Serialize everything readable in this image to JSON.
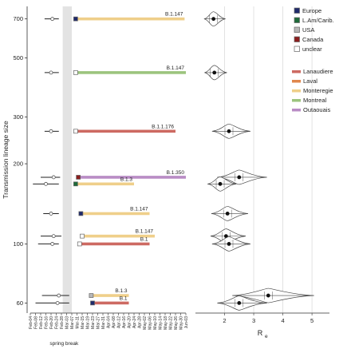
{
  "chart_data": [
    {
      "type": "timeline",
      "ylabel": "Transmission lineage size",
      "x_ticks": [
        "Feb-04",
        "Feb-08",
        "Feb-12",
        "Feb-16",
        "Feb-20",
        "Feb-24",
        "Feb-28",
        "Mar-03",
        "Mar-07",
        "Mar-11",
        "Mar-15",
        "Mar-19",
        "Mar-23",
        "Mar-27",
        "Mar-31",
        "Apr-04",
        "Apr-08",
        "Apr-12",
        "Apr-16",
        "Apr-20",
        "Apr-24",
        "Apr-28",
        "May-02",
        "May-06",
        "May-10",
        "May-14",
        "May-18",
        "May-22",
        "May-26",
        "May-30",
        "Jun-03"
      ],
      "x_range": [
        "Feb-04",
        "Jun-03"
      ],
      "y_ticks": [
        60,
        100,
        200,
        300,
        500,
        700
      ],
      "y_scale": "log",
      "y_range": [
        55,
        780
      ],
      "shaded_band": {
        "label": "spring break",
        "from": "Feb-29",
        "to": "Mar-07"
      },
      "lineages": [
        {
          "size": 700,
          "tmrca": "Feb-21",
          "ci": [
            "Feb-15",
            "Feb-26"
          ],
          "first": "Mar-10",
          "last": "Jun-02",
          "origin": "Europe",
          "region": "Monteregie",
          "label": "B.1.147"
        },
        {
          "size": 440,
          "tmrca": "Feb-20",
          "ci": [
            "Feb-15",
            "Feb-26"
          ],
          "first": "Mar-10",
          "last": "Jun-03",
          "origin": "unclear",
          "region": "Montreal",
          "label": "B.1.147"
        },
        {
          "size": 265,
          "tmrca": "Feb-20",
          "ci": [
            "Feb-15",
            "Feb-26"
          ],
          "first": "Mar-10",
          "last": "May-26",
          "origin": "unclear",
          "region": "Lanaudiere",
          "label": "B.1.1.176"
        },
        {
          "size": 178,
          "tmrca": "Feb-22",
          "ci": [
            "Feb-12",
            "Feb-27"
          ],
          "first": "Mar-12",
          "last": "Jun-03",
          "origin": "Canada",
          "region": "Outaouais",
          "label": "B.1.350"
        },
        {
          "size": 168,
          "tmrca": "Feb-16",
          "ci": [
            "Feb-06",
            "Feb-26"
          ],
          "first": "Mar-10",
          "last": "Apr-24",
          "origin": "L.Am/Carib.",
          "region": "Monteregie",
          "label": "B.1.3"
        },
        {
          "size": 130,
          "tmrca": "Feb-20",
          "ci": [
            "Feb-14",
            "Feb-26"
          ],
          "first": "Mar-14",
          "last": "May-06",
          "origin": "Europe",
          "region": "Monteregie",
          "label": "B.1.147"
        },
        {
          "size": 107,
          "tmrca": "Feb-22",
          "ci": [
            "Feb-12",
            "Feb-28"
          ],
          "first": "Mar-15",
          "last": "May-10",
          "origin": "unclear",
          "region": "Monteregie",
          "label": "B.1.147"
        },
        {
          "size": 100,
          "tmrca": "Feb-21",
          "ci": [
            "Feb-10",
            "Feb-26"
          ],
          "first": "Mar-13",
          "last": "May-06",
          "origin": "unclear",
          "region": "Lanaudiere",
          "label": "B.1"
        },
        {
          "size": 64,
          "tmrca": "Feb-26",
          "ci": [
            "Feb-13",
            "Mar-05"
          ],
          "first": "Mar-22",
          "last": "Apr-20",
          "origin": "USA",
          "region": "Monteregie",
          "label": "B.1.3"
        },
        {
          "size": 60,
          "tmrca": "Feb-25",
          "ci": [
            "Feb-08",
            "Mar-05"
          ],
          "first": "Mar-23",
          "last": "Apr-20",
          "origin": "Europe",
          "region": "Lanaudiere",
          "label": "B.1"
        }
      ]
    },
    {
      "type": "violin",
      "xlabel": "R",
      "xlabel_sub": "e",
      "x_ticks": [
        2,
        3,
        4,
        5
      ],
      "x_range": [
        1.0,
        5.6
      ],
      "grid": "vertical",
      "values": [
        {
          "size": 700,
          "re": 1.62
        },
        {
          "size": 440,
          "re": 1.65
        },
        {
          "size": 265,
          "re": 2.15
        },
        {
          "size": 178,
          "re": 2.5
        },
        {
          "size": 168,
          "re": 1.85
        },
        {
          "size": 130,
          "re": 2.1
        },
        {
          "size": 107,
          "re": 2.05
        },
        {
          "size": 100,
          "re": 2.15
        },
        {
          "size": 64,
          "re": 3.5
        },
        {
          "size": 60,
          "re": 2.5
        }
      ]
    }
  ],
  "legend": {
    "origin": [
      {
        "name": "Europe",
        "color": "#1f2a6b"
      },
      {
        "name": "L.Am/Carib.",
        "color": "#1f6b3a"
      },
      {
        "name": "USA",
        "color": "#b8b8b8"
      },
      {
        "name": "Canada",
        "color": "#8b1e1e"
      },
      {
        "name": "unclear",
        "color": "#ffffff"
      }
    ],
    "region": [
      {
        "name": "Lanaudiere",
        "color": "#cd6a62"
      },
      {
        "name": "Laval",
        "color": "#e0874d"
      },
      {
        "name": "Monteregie",
        "color": "#efcf8a"
      },
      {
        "name": "Montreal",
        "color": "#9cc47e"
      },
      {
        "name": "Outaouais",
        "color": "#b98cc5"
      }
    ]
  }
}
